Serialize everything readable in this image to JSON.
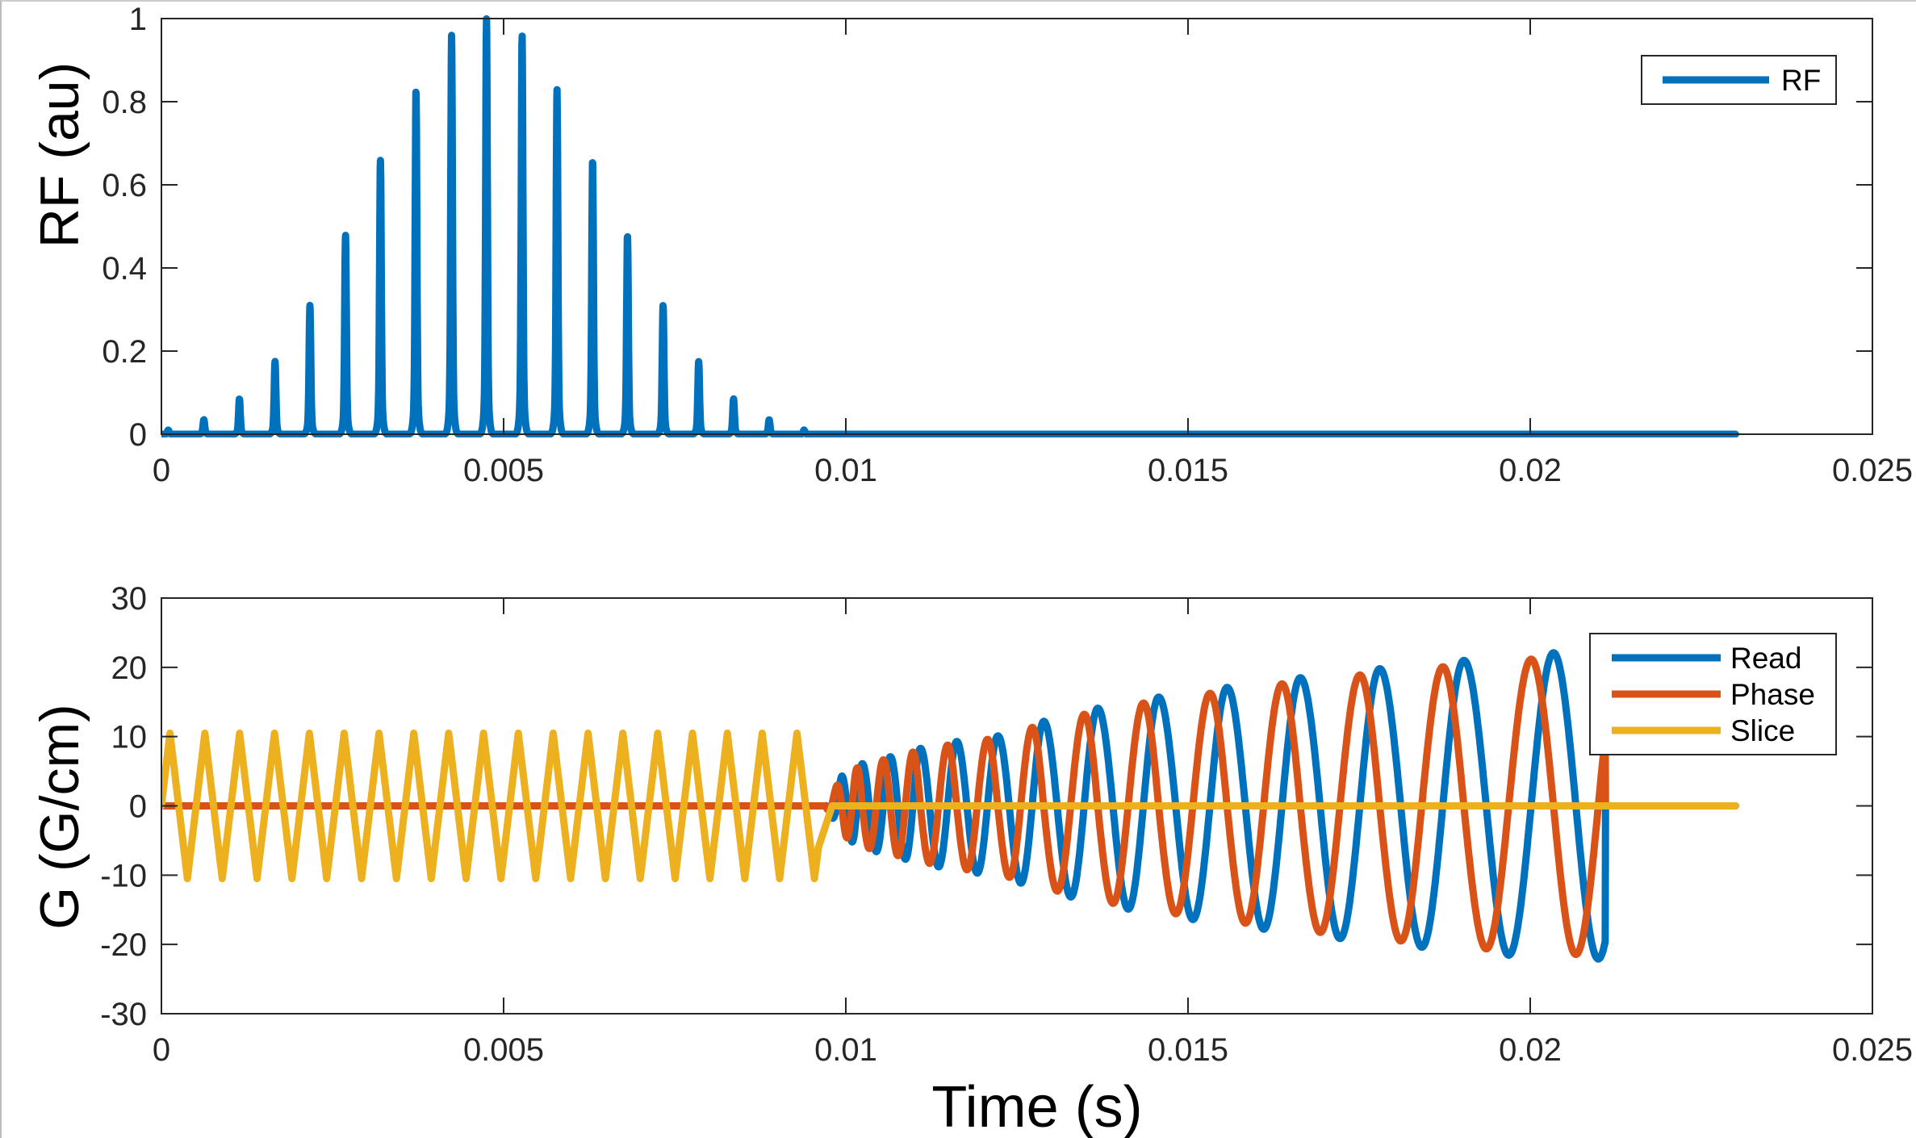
{
  "chart_data": [
    {
      "type": "line",
      "title": "",
      "xlabel": "",
      "ylabel": "RF (au)",
      "xlim": [
        0,
        0.025
      ],
      "ylim": [
        0,
        1
      ],
      "xticks": [
        "0",
        "0.005",
        "0.01",
        "0.015",
        "0.02",
        "0.025"
      ],
      "xtick_values": [
        0,
        0.005,
        0.01,
        0.015,
        0.02,
        0.025
      ],
      "yticks": [
        "0",
        "0.2",
        "0.4",
        "0.6",
        "0.8",
        "1"
      ],
      "ytick_values": [
        0,
        0.2,
        0.4,
        0.6,
        0.8,
        1
      ],
      "grid": false,
      "legend": {
        "placement": "top-right",
        "entries": [
          "RF"
        ]
      },
      "series": [
        {
          "name": "RF",
          "color": "#0072BD",
          "t_end": 0.023,
          "pulse_times": [
            0.0001,
            0.00062,
            0.00114,
            0.00166,
            0.00217,
            0.00269,
            0.0032,
            0.00372,
            0.00424,
            0.00475,
            0.00527,
            0.00578,
            0.0063,
            0.00681,
            0.00733,
            0.00785,
            0.00836,
            0.00888,
            0.00939
          ],
          "pulse_values": [
            0.01,
            0.035,
            0.085,
            0.175,
            0.31,
            0.48,
            0.66,
            0.83,
            0.96,
            1.0,
            0.96,
            0.83,
            0.66,
            0.48,
            0.31,
            0.175,
            0.085,
            0.035,
            0.01
          ]
        }
      ]
    },
    {
      "type": "line",
      "title": "",
      "xlabel": "Time (s)",
      "ylabel": "G (G/cm)",
      "xlim": [
        0,
        0.025
      ],
      "ylim": [
        -30,
        30
      ],
      "xticks": [
        "0",
        "0.005",
        "0.01",
        "0.015",
        "0.02",
        "0.025"
      ],
      "xtick_values": [
        0,
        0.005,
        0.01,
        0.015,
        0.02,
        0.025
      ],
      "yticks": [
        "-30",
        "-20",
        "-10",
        "0",
        "10",
        "20",
        "30"
      ],
      "ytick_values": [
        -30,
        -20,
        -10,
        0,
        10,
        20,
        30
      ],
      "grid": false,
      "legend": {
        "placement": "top-right",
        "entries": [
          "Read",
          "Phase",
          "Slice"
        ]
      },
      "series": [
        {
          "name": "Read",
          "color": "#0072BD",
          "start": 0.0097,
          "end": 0.0211,
          "t_end": 0.023,
          "peak_times": [
            0.00994,
            0.01024,
            0.01065,
            0.01109,
            0.01162,
            0.01222,
            0.01289,
            0.01368,
            0.01457,
            0.01557,
            0.01664,
            0.0178,
            0.01903,
            0.02034
          ],
          "peak_values": [
            4.3,
            6.1,
            7.1,
            8.3,
            9.3,
            10.1,
            12.2,
            14.1,
            15.7,
            17.1,
            18.5,
            19.8,
            21.0,
            22.1
          ]
        },
        {
          "name": "Phase",
          "color": "#D95319",
          "relation": "quarter-period lead of Read",
          "t_end": 0.023
        },
        {
          "name": "Slice",
          "color": "#EDB120",
          "shape": "triangle",
          "first_peak": 0.000125,
          "period": 0.000509,
          "amplitude": 10.5,
          "end": 0.0096,
          "end_value": -6,
          "t_end": 0.023
        }
      ]
    }
  ]
}
